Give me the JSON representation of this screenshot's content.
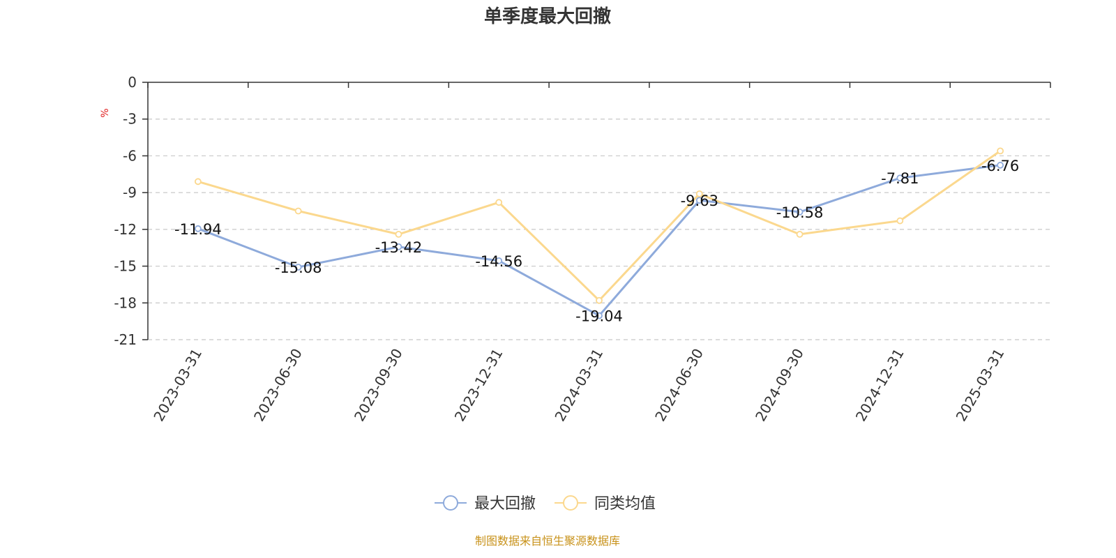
{
  "chart_data": {
    "type": "line",
    "title": "单季度最大回撤",
    "ylabel": "%",
    "ylim": [
      -21,
      0
    ],
    "yticks": [
      0,
      -3,
      -6,
      -9,
      -12,
      -15,
      -18,
      -21
    ],
    "grid": true,
    "legend_position": "bottom",
    "categories": [
      "2023-03-31",
      "2023-06-30",
      "2023-09-30",
      "2023-12-31",
      "2024-03-31",
      "2024-06-30",
      "2024-09-30",
      "2024-12-31",
      "2025-03-31"
    ],
    "series": [
      {
        "name": "最大回撤",
        "color": "#8eaadb",
        "values": [
          -11.94,
          -15.08,
          -13.42,
          -14.56,
          -19.04,
          -9.63,
          -10.58,
          -7.81,
          -6.76
        ],
        "labels": [
          "-11.94",
          "-15.08",
          "-13.42",
          "-14.56",
          "-19.04",
          "-9.63",
          "-10.58",
          "-7.81",
          "-6.76"
        ]
      },
      {
        "name": "同类均值",
        "color": "#fbd88e",
        "values": [
          -8.1,
          -10.5,
          -12.4,
          -9.8,
          -17.8,
          -9.1,
          -12.4,
          -11.3,
          -5.6
        ]
      }
    ],
    "source": "制图数据来自恒生聚源数据库"
  }
}
